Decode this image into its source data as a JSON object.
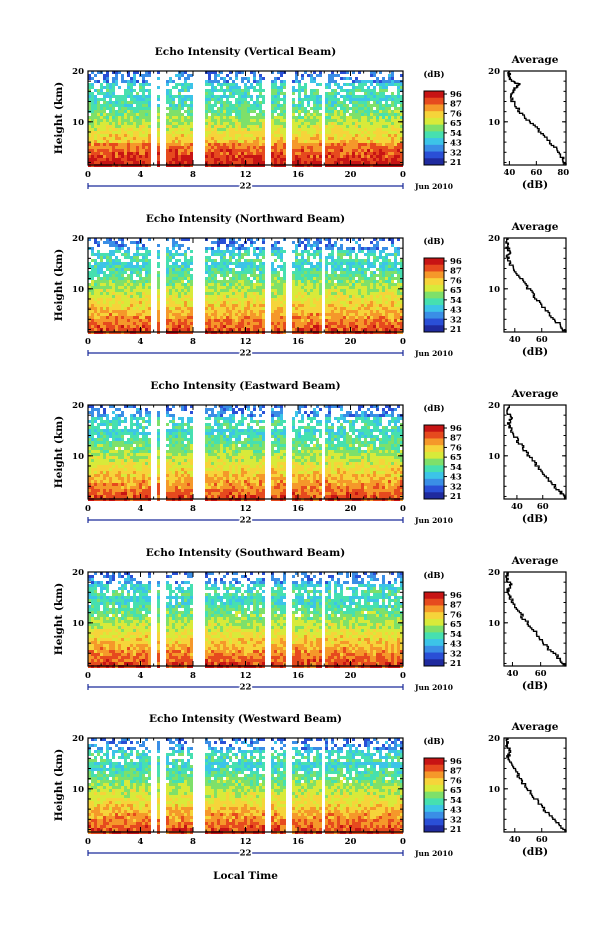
{
  "figure": {
    "x_axis_label": "Local Time",
    "y_axis_label": "Height (km)",
    "date_label": "Jun 2010",
    "day_label": "22",
    "average_title": "Average",
    "unit_label": "(dB)",
    "colorbar_ticks": [
      "96",
      "87",
      "76",
      "65",
      "54",
      "43",
      "32",
      "21"
    ],
    "colors": {
      "colormap": [
        "#1f2a9e",
        "#2a4fd6",
        "#3a8ee6",
        "#3cc4e8",
        "#46e0b0",
        "#7ee06a",
        "#d8ea3a",
        "#f6d43a",
        "#f5982a",
        "#e64a1e",
        "#c71414"
      ],
      "gap": "#ffffff",
      "frame": "#000000",
      "day_marker": "#1a2a9a"
    }
  },
  "chart_data": [
    {
      "type": "heatmap",
      "title": "Echo Intensity (Vertical Beam)",
      "xlabel": "",
      "ylabel": "Height (km)",
      "xlim": [
        0,
        24
      ],
      "ylim": [
        1.5,
        20
      ],
      "xticks": [
        "0",
        "4",
        "8",
        "12",
        "16",
        "20",
        "0"
      ],
      "yticks": [
        "10",
        "20"
      ],
      "colorbar": {
        "label": "(dB)",
        "range": [
          21,
          96
        ],
        "ticks": [
          "96",
          "87",
          "76",
          "65",
          "54",
          "43",
          "32",
          "21"
        ]
      },
      "data_gaps_hours": [
        [
          4.7,
          5.1
        ],
        [
          5.4,
          5.8
        ],
        [
          8.0,
          8.8
        ],
        [
          13.3,
          13.9
        ],
        [
          15.0,
          15.4
        ],
        [
          17.6,
          18.0
        ]
      ],
      "profile": {
        "title": "Average",
        "xlabel": "(dB)",
        "xlim": [
          36,
          82
        ],
        "xticks": [
          "40",
          "60",
          "80"
        ],
        "yticks": [
          "10",
          "20"
        ],
        "height_km": [
          1.5,
          3,
          5,
          7,
          9,
          11,
          13,
          15,
          16.5,
          17.5,
          18,
          19,
          20
        ],
        "intensity_db": [
          82,
          80,
          74,
          67,
          60,
          52,
          45,
          41,
          43,
          47,
          42,
          40,
          40
        ]
      }
    },
    {
      "type": "heatmap",
      "title": "Echo Intensity (Northward Beam)",
      "xlabel": "",
      "ylabel": "Height (km)",
      "xlim": [
        0,
        24
      ],
      "ylim": [
        1.5,
        20
      ],
      "xticks": [
        "0",
        "4",
        "8",
        "12",
        "16",
        "20",
        "0"
      ],
      "yticks": [
        "10",
        "20"
      ],
      "colorbar": {
        "label": "(dB)",
        "range": [
          21,
          96
        ],
        "ticks": [
          "96",
          "87",
          "76",
          "65",
          "54",
          "43",
          "32",
          "21"
        ]
      },
      "data_gaps_hours": [
        [
          4.7,
          5.1
        ],
        [
          5.4,
          5.8
        ],
        [
          8.0,
          8.8
        ],
        [
          13.3,
          13.9
        ],
        [
          15.0,
          15.4
        ],
        [
          17.6,
          18.0
        ]
      ],
      "profile": {
        "title": "Average",
        "xlabel": "(dB)",
        "xlim": [
          32,
          78
        ],
        "xticks": [
          "40",
          "60"
        ],
        "yticks": [
          "10",
          "20"
        ],
        "height_km": [
          1.5,
          3,
          5,
          7,
          9,
          11,
          13,
          15,
          16.5,
          17.5,
          18.5,
          20
        ],
        "intensity_db": [
          78,
          74,
          66,
          60,
          54,
          48,
          42,
          37,
          35,
          36,
          34,
          35
        ]
      }
    },
    {
      "type": "heatmap",
      "title": "Echo Intensity (Eastward Beam)",
      "xlabel": "",
      "ylabel": "Height (km)",
      "xlim": [
        0,
        24
      ],
      "ylim": [
        1.5,
        20
      ],
      "xticks": [
        "0",
        "4",
        "8",
        "12",
        "16",
        "20",
        "0"
      ],
      "yticks": [
        "10",
        "20"
      ],
      "colorbar": {
        "label": "(dB)",
        "range": [
          21,
          96
        ],
        "ticks": [
          "96",
          "87",
          "76",
          "65",
          "54",
          "43",
          "32",
          "21"
        ]
      },
      "data_gaps_hours": [
        [
          4.7,
          5.1
        ],
        [
          5.4,
          5.8
        ],
        [
          8.0,
          8.8
        ],
        [
          13.3,
          13.9
        ],
        [
          15.0,
          15.4
        ],
        [
          17.6,
          18.0
        ]
      ],
      "profile": {
        "title": "Average",
        "xlabel": "(dB)",
        "xlim": [
          30,
          78
        ],
        "xticks": [
          "40",
          "60"
        ],
        "yticks": [
          "10",
          "20"
        ],
        "height_km": [
          1.5,
          3,
          5,
          7,
          9,
          11,
          13,
          15,
          16.5,
          17.5,
          18.5,
          20
        ],
        "intensity_db": [
          78,
          74,
          66,
          59,
          53,
          47,
          41,
          36,
          34,
          36,
          33,
          34
        ]
      }
    },
    {
      "type": "heatmap",
      "title": "Echo Intensity (Southward Beam)",
      "xlabel": "",
      "ylabel": "Height (km)",
      "xlim": [
        0,
        24
      ],
      "ylim": [
        1.5,
        20
      ],
      "xticks": [
        "0",
        "4",
        "8",
        "12",
        "16",
        "20",
        "0"
      ],
      "yticks": [
        "10",
        "20"
      ],
      "colorbar": {
        "label": "(dB)",
        "range": [
          21,
          96
        ],
        "ticks": [
          "96",
          "87",
          "76",
          "65",
          "54",
          "43",
          "32",
          "21"
        ]
      },
      "data_gaps_hours": [
        [
          4.7,
          5.1
        ],
        [
          5.4,
          5.8
        ],
        [
          8.0,
          8.8
        ],
        [
          13.3,
          13.9
        ],
        [
          15.0,
          15.4
        ],
        [
          17.6,
          18.0
        ]
      ],
      "profile": {
        "title": "Average",
        "xlabel": "(dB)",
        "xlim": [
          34,
          78
        ],
        "xticks": [
          "40",
          "60"
        ],
        "yticks": [
          "10",
          "20"
        ],
        "height_km": [
          1.5,
          3,
          5,
          7,
          9,
          11,
          13,
          15,
          16.5,
          17.5,
          18.5,
          20
        ],
        "intensity_db": [
          78,
          74,
          66,
          60,
          54,
          48,
          43,
          39,
          37,
          39,
          36,
          37
        ]
      }
    },
    {
      "type": "heatmap",
      "title": "Echo Intensity (Westward Beam)",
      "xlabel": "Local Time",
      "ylabel": "Height (km)",
      "xlim": [
        0,
        24
      ],
      "ylim": [
        1.5,
        20
      ],
      "xticks": [
        "0",
        "4",
        "8",
        "12",
        "16",
        "20",
        "0"
      ],
      "yticks": [
        "10",
        "20"
      ],
      "colorbar": {
        "label": "(dB)",
        "range": [
          21,
          96
        ],
        "ticks": [
          "96",
          "87",
          "76",
          "65",
          "54",
          "43",
          "32",
          "21"
        ]
      },
      "data_gaps_hours": [
        [
          4.7,
          5.1
        ],
        [
          5.4,
          5.8
        ],
        [
          8.0,
          8.8
        ],
        [
          13.3,
          13.9
        ],
        [
          15.0,
          15.4
        ],
        [
          17.6,
          18.0
        ]
      ],
      "profile": {
        "title": "Average",
        "xlabel": "(dB)",
        "xlim": [
          32,
          78
        ],
        "xticks": [
          "40",
          "60"
        ],
        "yticks": [
          "10",
          "20"
        ],
        "height_km": [
          1.5,
          3,
          5,
          7,
          9,
          11,
          13,
          15,
          16.5,
          17.5,
          18.5,
          20
        ],
        "intensity_db": [
          78,
          74,
          66,
          59,
          53,
          47,
          42,
          37,
          35,
          37,
          34,
          35
        ]
      }
    }
  ]
}
